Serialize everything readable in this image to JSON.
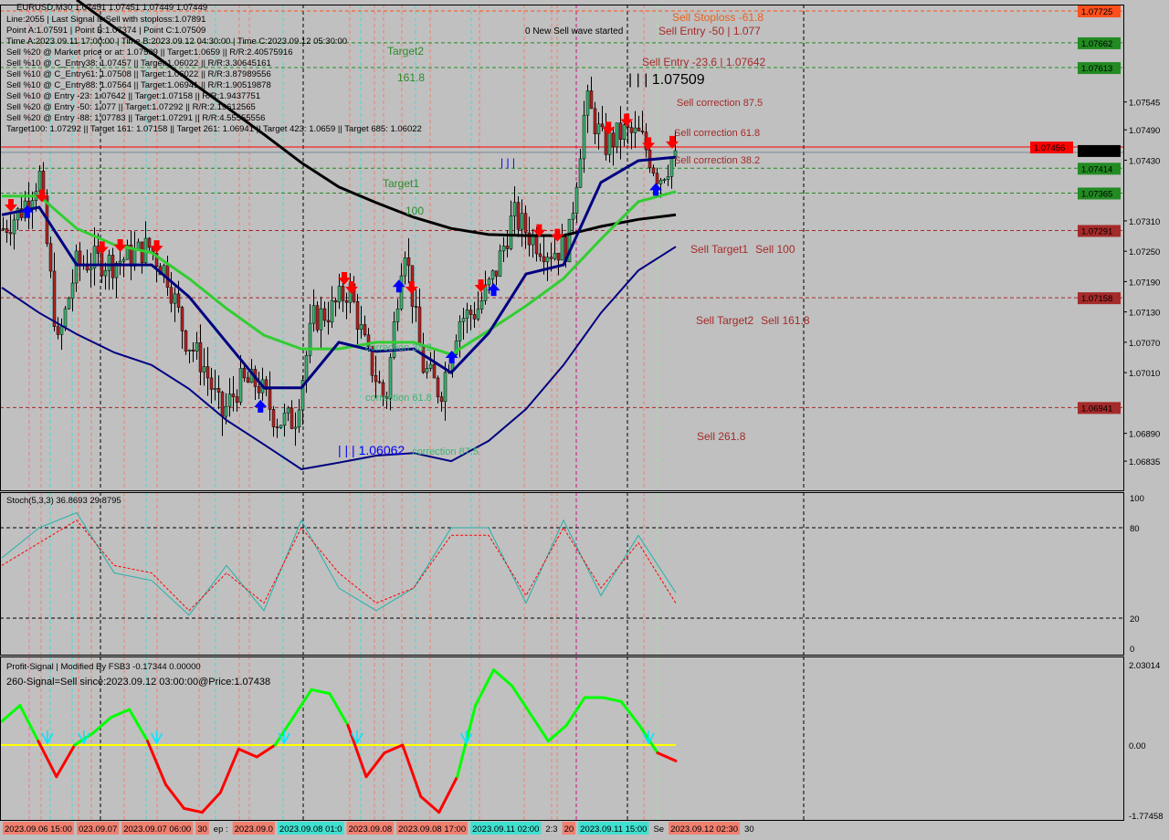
{
  "header": {
    "symbol_line": "EURUSD,M30  1.07451 1.07451 1.07449 1.07449",
    "info_lines": [
      "Line:2055 | Last Signal is:Sell with stoploss:1.07891",
      "Point A:1.07591 | Point B:1.07374 | Point C:1.07509",
      "Time A:2023.09.11 17:00:00 | Time B:2023.09.12 04:30:00 | Time C:2023.09.12 05:30:00",
      "Sell %20 @ Market price or at: 1.07509 || Target:1.0659 || R/R:2.40575916",
      "Sell %10 @ C_Entry38: 1.07457 || Target:1.06022 || R/R:3.30645161",
      "Sell %10 @ C_Entry61: 1.07508 || Target:1.06022 || R/R:3.87989556",
      "Sell %10 @ C_Entry88: 1.07564 || Target:1.06941 || R/R:1.90519878",
      "Sell %10 @ Entry -23: 1.07642 || Target:1.07158 || R/R:1.9437751",
      "Sell %20 @ Entry -50: 1.077 || Target:1.07292 || R/R:2.19612565",
      "Sell %20 @ Entry -88: 1.07783 || Target:1.07291 || R/R:4.55555556",
      "Target100: 1.07292 || Target 161: 1.07158 || Target 261: 1.06941 || Target 423: 1.0659 || Target 685: 1.06022"
    ]
  },
  "colors": {
    "background": "#c0c0c0",
    "bull_candle": "#3cb371",
    "bear_candle": "#b22222",
    "ma_slow": "#000000",
    "ma_green": "#32cd32",
    "ma_navy": "#000080",
    "stoch_main": "#20b2aa",
    "stoch_signal": "#ff0000",
    "profit_up": "#00ff00",
    "profit_down": "#ff0000",
    "profit_zero": "#ffff00"
  },
  "chart_data": [
    {
      "type": "line",
      "title": "EURUSD,M30",
      "ylim": [
        1.06777,
        1.07747
      ],
      "grid": false,
      "price_ticks": [
        "1.07545",
        "1.07490",
        "1.07430",
        "1.07310",
        "1.07250",
        "1.07190",
        "1.07130",
        "1.07070",
        "1.07010",
        "1.06890",
        "1.06835"
      ],
      "close_samples": [
        1.07295,
        1.07332,
        1.074,
        1.07061,
        1.07223,
        1.07232,
        1.07227,
        1.07241,
        1.07259,
        1.07205,
        1.07079,
        1.07025,
        1.06925,
        1.06989,
        1.06989,
        1.06916,
        1.06916,
        1.07115,
        1.07133,
        1.07178,
        1.07043,
        1.06952,
        1.07277,
        1.07025,
        1.0697,
        1.07115,
        1.07133,
        1.07205,
        1.07322,
        1.07277,
        1.0725,
        1.07259,
        1.07548,
        1.07458,
        1.07485,
        1.07476,
        1.07395,
        1.07449
      ],
      "moving_averages": [
        {
          "color": "#000000",
          "values": [
            null,
            null,
            1.07747,
            1.07693,
            1.07642,
            1.07588,
            1.07535,
            1.07481,
            1.07425,
            1.07377,
            1.07346,
            1.07317,
            1.07295,
            1.07283,
            1.07281,
            1.07281,
            1.07299,
            1.07313,
            1.07322
          ]
        },
        {
          "color": "#32cd32",
          "values": [
            1.07359,
            1.07359,
            1.07295,
            1.07263,
            1.07247,
            1.07196,
            1.07137,
            1.07084,
            1.07057,
            1.07057,
            1.0707,
            1.0707,
            1.07046,
            1.07093,
            1.07142,
            1.07196,
            1.07274,
            1.07348,
            1.07368
          ]
        },
        {
          "color": "#000080",
          "values": [
            1.07322,
            1.07337,
            1.07223,
            1.07223,
            1.07223,
            1.0716,
            1.0707,
            1.0698,
            1.0698,
            1.0707,
            1.07052,
            1.07057,
            1.0701,
            1.07088,
            1.07205,
            1.07223,
            1.07386,
            1.07429,
            1.07436
          ]
        },
        {
          "color": "#000080",
          "values": [
            1.07178,
            1.07128,
            1.07086,
            1.0705,
            1.07025,
            1.06978,
            1.06916,
            1.06868,
            1.06819,
            1.06832,
            1.06846,
            1.06851,
            1.06835,
            1.06875,
            1.06938,
            1.07025,
            1.07128,
            1.07212,
            1.07259
          ]
        }
      ],
      "levels": [
        {
          "price": 1.07725,
          "label": "1.07725",
          "color": "#ff4f1a",
          "style": "dashed"
        },
        {
          "price": 1.07662,
          "label": "1.07662",
          "color": "#228b22",
          "style": "dashed"
        },
        {
          "price": 1.07613,
          "label": "1.07613",
          "color": "#228b22",
          "style": "dashed"
        },
        {
          "price": 1.07456,
          "label": "1.07456",
          "color": "#ff0000",
          "style": "solid"
        },
        {
          "price": 1.07449,
          "label": "1.07449",
          "color": "#000000",
          "style": "solid-gray"
        },
        {
          "price": 1.07414,
          "label": "1.07414",
          "color": "#228b22",
          "style": "dashed"
        },
        {
          "price": 1.07365,
          "label": "1.07365",
          "color": "#228b22",
          "style": "dashed"
        },
        {
          "price": 1.07291,
          "label": "1.07291",
          "color": "#a52a2a",
          "style": "dashed"
        },
        {
          "price": 1.07158,
          "label": "1.07158",
          "color": "#a52a2a",
          "style": "dashed"
        },
        {
          "price": 1.06941,
          "label": "1.06941",
          "color": "#a52a2a",
          "style": "dashed"
        }
      ],
      "annotations": [
        {
          "text": "0 New Sell wave started",
          "color": "#000000"
        },
        {
          "text": "Sell Stoploss -61.8",
          "color": "#e8601c"
        },
        {
          "text": "Sell Entry -50 | 1.077",
          "color": "#a52a2a"
        },
        {
          "text": "Sell Entry -23.6 | 1.07642",
          "color": "#a52a2a"
        },
        {
          "text": "| | | 1.07509",
          "color": "#000000"
        },
        {
          "text": "Sell correction 87.5",
          "color": "#a52a2a"
        },
        {
          "text": "Sell correction 61.8",
          "color": "#a52a2a"
        },
        {
          "text": "Sell correction 38.2",
          "color": "#a52a2a"
        },
        {
          "text": "Sell Target1",
          "color": "#a52a2a"
        },
        {
          "text": "Sell 100",
          "color": "#a52a2a"
        },
        {
          "text": "Sell Target2",
          "color": "#a52a2a"
        },
        {
          "text": "Sell 161.8",
          "color": "#a52a2a"
        },
        {
          "text": "Sell  261.8",
          "color": "#a52a2a"
        },
        {
          "text": "Target2",
          "color": "#2e8b2e"
        },
        {
          "text": "161.8",
          "color": "#2e8b2e"
        },
        {
          "text": "Target1",
          "color": "#2e8b2e"
        },
        {
          "text": "100",
          "color": "#2e8b2e"
        },
        {
          "text": "correction 38.2",
          "color": "#3cb371"
        },
        {
          "text": "correction 61.8",
          "color": "#3cb371"
        },
        {
          "text": "correction 87.5",
          "color": "#3cb371"
        },
        {
          "text": "| | | 1.06062",
          "color": "#0000ff"
        },
        {
          "text": "| | |",
          "color": "#0000ff"
        }
      ],
      "signals": [
        {
          "at": 0.5,
          "type": "sell"
        },
        {
          "at": 2.2,
          "type": "sell"
        },
        {
          "at": 1.4,
          "type": "buy"
        },
        {
          "at": 5.5,
          "type": "sell"
        },
        {
          "at": 6.5,
          "type": "sell"
        },
        {
          "at": 8.5,
          "type": "sell"
        },
        {
          "at": 14.2,
          "type": "buy"
        },
        {
          "at": 18.8,
          "type": "sell"
        },
        {
          "at": 19.2,
          "type": "sell"
        },
        {
          "at": 21.8,
          "type": "buy"
        },
        {
          "at": 22.5,
          "type": "sell"
        },
        {
          "at": 24.7,
          "type": "buy"
        },
        {
          "at": 26.3,
          "type": "sell"
        },
        {
          "at": 27.0,
          "type": "buy"
        },
        {
          "at": 29.5,
          "type": "sell"
        },
        {
          "at": 30.5,
          "type": "sell"
        },
        {
          "at": 33.3,
          "type": "sell"
        },
        {
          "at": 34.3,
          "type": "sell"
        },
        {
          "at": 35.5,
          "type": "sell"
        },
        {
          "at": 35.9,
          "type": "buy"
        },
        {
          "at": 36.8,
          "type": "sell"
        }
      ]
    },
    {
      "type": "line",
      "title": "Stoch(5,3,3) 36.8693 29.8795",
      "ylim": [
        0,
        100
      ],
      "levels": [
        20,
        80
      ],
      "tick_labels": [
        "100",
        "80",
        "20",
        "0"
      ],
      "series": [
        {
          "color": "#20b2aa",
          "values": [
            60,
            80,
            90,
            50,
            45,
            22,
            55,
            25,
            85,
            40,
            25,
            40,
            80,
            80,
            30,
            85,
            35,
            75,
            36.8693
          ]
        },
        {
          "color": "#ff0000",
          "values": [
            55,
            70,
            85,
            55,
            50,
            25,
            50,
            30,
            80,
            50,
            30,
            40,
            75,
            75,
            35,
            80,
            40,
            70,
            29.8795
          ]
        }
      ]
    },
    {
      "type": "line",
      "title": "Profit-Signal | Modified By FSB3 -0.17344 0.00000",
      "subtitle": "260-Signal=Sell since:2023.09.12 03:00:00@Price:1.07438",
      "ylim": [
        -1.77458,
        2.03014
      ],
      "tick_labels": [
        "2.03014",
        "0.00",
        "-1.77458"
      ],
      "values": [
        0.6,
        1.0,
        0.1,
        -0.8,
        0.0,
        0.3,
        0.7,
        0.9,
        0.1,
        -1.0,
        -1.6,
        -1.7,
        -1.2,
        -0.1,
        -0.3,
        0.0,
        0.7,
        1.4,
        1.3,
        0.5,
        -0.8,
        -0.2,
        0.0,
        -1.3,
        -1.7,
        -0.8,
        1.0,
        1.9,
        1.5,
        0.8,
        0.1,
        0.5,
        1.2,
        1.2,
        1.1,
        0.5,
        -0.2,
        -0.4
      ]
    }
  ],
  "time_axis": [
    {
      "text": "2023.09.06 15:00",
      "color": "#f08070"
    },
    {
      "text": "023.09.07",
      "color": "#f08070"
    },
    {
      "text": "2023.09.07 06:00",
      "color": "#f08070"
    },
    {
      "text": "30",
      "color": "#f08070"
    },
    {
      "text": "ep :",
      "color": ""
    },
    {
      "text": "2023.09.0",
      "color": "#f08070"
    },
    {
      "text": "2023.09.08 01:0",
      "color": "#40e0d0"
    },
    {
      "text": "2023.09.08",
      "color": "#f08070"
    },
    {
      "text": "2023.09.08 17:00",
      "color": "#f08070"
    },
    {
      "text": "2023.09.11 02:00",
      "color": "#40e0d0"
    },
    {
      "text": "2:3",
      "color": ""
    },
    {
      "text": "20",
      "color": "#f08070"
    },
    {
      "text": "2023.09.11 15:00",
      "color": "#40e0d0"
    },
    {
      "text": "Se",
      "color": ""
    },
    {
      "text": "2023.09.12 02:30",
      "color": "#f08070"
    },
    {
      "text": "30",
      "color": ""
    }
  ]
}
